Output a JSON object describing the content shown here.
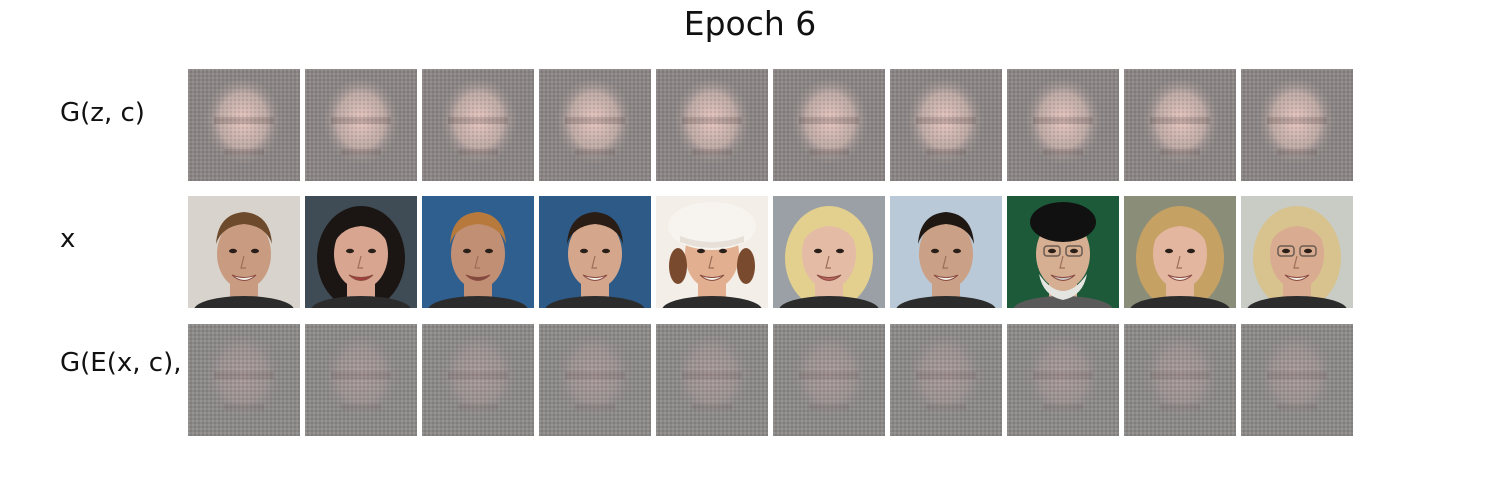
{
  "title": "Epoch 6",
  "rows": [
    {
      "label": "G(z, c)",
      "kind": "generated"
    },
    {
      "label": "x",
      "kind": "real"
    },
    {
      "label": "G(E(x, c), c)",
      "kind": "reconstructed"
    }
  ],
  "colors": {
    "generated_bg": "#8a8584",
    "generated_face": "#e9c7c0",
    "reconstructed_bg": "#8b8888",
    "reconstructed_face": "#b7a1a0"
  },
  "real_faces": [
    {
      "bg": "#d8d3cc",
      "skin": "#c99c82",
      "hair": "#6e4a2c",
      "mouth": "#f1efe8",
      "style": "man-short"
    },
    {
      "bg": "#3f4b55",
      "skin": "#d8a591",
      "hair": "#1b1614",
      "mouth": "#a43d3a",
      "style": "woman-curl"
    },
    {
      "bg": "#2f5f8f",
      "skin": "#c08f74",
      "hair": "#b77a3c",
      "mouth": "#7d4a3c",
      "style": "man-short"
    },
    {
      "bg": "#2d5a86",
      "skin": "#d4a78d",
      "hair": "#2a1d16",
      "mouth": "#f3f0e8",
      "style": "man-short"
    },
    {
      "bg": "#f3efe8",
      "skin": "#e2b090",
      "hair": "#7a4a2e",
      "mouth": "#f6f2ea",
      "style": "hat"
    },
    {
      "bg": "#9aa0a6",
      "skin": "#e4bca6",
      "hair": "#e3cf8e",
      "mouth": "#b7645c",
      "style": "long-blonde"
    },
    {
      "bg": "#b9c9d8",
      "skin": "#caa186",
      "hair": "#1f1712",
      "mouth": "#f2efe8",
      "style": "man-short"
    },
    {
      "bg": "#1c5a3a",
      "skin": "#d6ae92",
      "hair": "#111111",
      "mouth": "#c8c8c8",
      "style": "turban"
    },
    {
      "bg": "#8a8e78",
      "skin": "#e3b6a0",
      "hair": "#c6a164",
      "mouth": "#f1ede4",
      "style": "long-blonde"
    },
    {
      "bg": "#c8ccc4",
      "skin": "#d9ab90",
      "hair": "#d8c28e",
      "mouth": "#f2eee6",
      "style": "glasses-blonde"
    }
  ]
}
